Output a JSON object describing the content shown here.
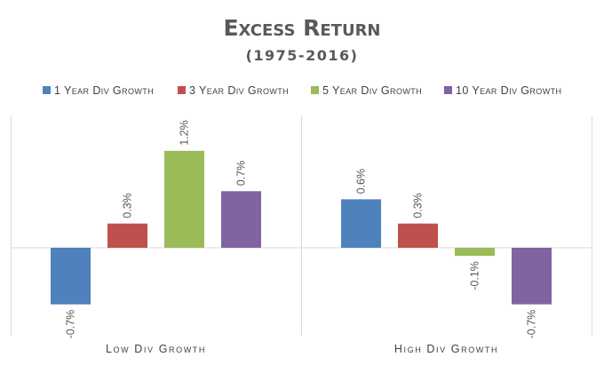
{
  "chart_data": {
    "type": "bar",
    "title": "Excess Return",
    "subtitle": "(1975-2016)",
    "categories": [
      "Low Div Growth",
      "High Div Growth"
    ],
    "series": [
      {
        "name": "1 Year Div Growth",
        "color": "#4f81bd",
        "values": [
          -0.7,
          0.6
        ],
        "labels": [
          "-0.7%",
          "0.6%"
        ]
      },
      {
        "name": "3 Year Div Growth",
        "color": "#c0504d",
        "values": [
          0.3,
          0.3
        ],
        "labels": [
          "0.3%",
          "0.3%"
        ]
      },
      {
        "name": "5 Year Div Growth",
        "color": "#9bbb59",
        "values": [
          1.2,
          -0.1
        ],
        "labels": [
          "1.2%",
          "-0.1%"
        ]
      },
      {
        "name": "10 Year Div Growth",
        "color": "#8064a2",
        "values": [
          0.7,
          -0.7
        ],
        "labels": [
          "0.7%",
          "-0.7%"
        ]
      }
    ],
    "ylim": [
      -1.0,
      1.5
    ],
    "legend_position": "top",
    "data_labels": true,
    "data_label_orientation": "vertical",
    "grid": false
  }
}
